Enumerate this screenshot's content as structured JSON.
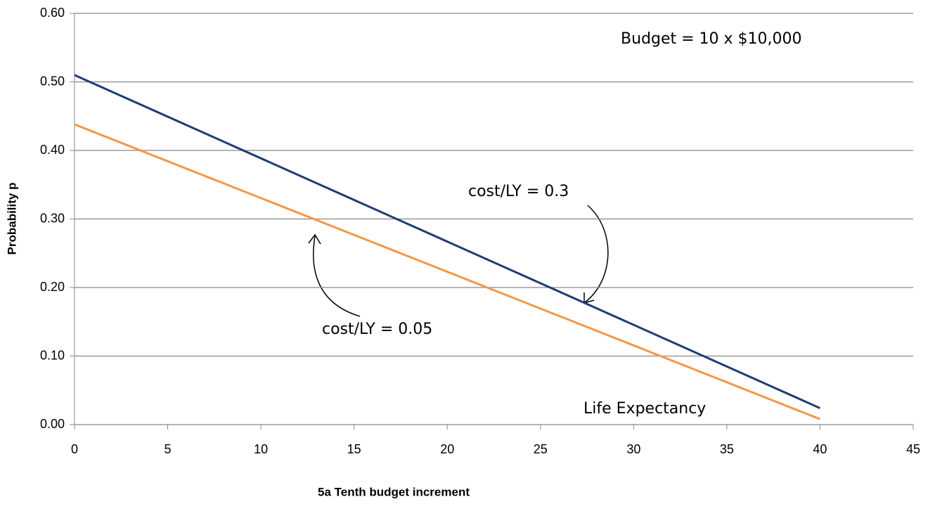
{
  "chart_data": {
    "type": "line",
    "x": [
      0,
      40
    ],
    "series": [
      {
        "color": "#1f3d73",
        "values": [
          0.51,
          0.024
        ]
      },
      {
        "color": "#f79646",
        "values": [
          0.438,
          0.008
        ]
      }
    ],
    "xlim": [
      0,
      45
    ],
    "xticks": [
      0,
      5,
      10,
      15,
      20,
      25,
      30,
      35,
      40,
      45
    ],
    "ylim": [
      0,
      0.6
    ],
    "yticks": [
      {
        "value": 0,
        "label": "0.00"
      },
      {
        "value": 0.1,
        "label": "0.10"
      },
      {
        "value": 0.2,
        "label": "0.20"
      },
      {
        "value": 0.3,
        "label": "0.30"
      },
      {
        "value": 0.4,
        "label": "0.40"
      },
      {
        "value": 0.5,
        "label": "0.50"
      },
      {
        "value": 0.6,
        "label": "0.60"
      }
    ],
    "grid": true,
    "xlabel": "5a Tenth budget increment",
    "ylabel": "Probability p",
    "annotations": [
      "Budget = 10 x $10,000",
      "cost/LY = 0.3",
      "cost/LY = 0.05",
      "Life Expectancy"
    ]
  }
}
